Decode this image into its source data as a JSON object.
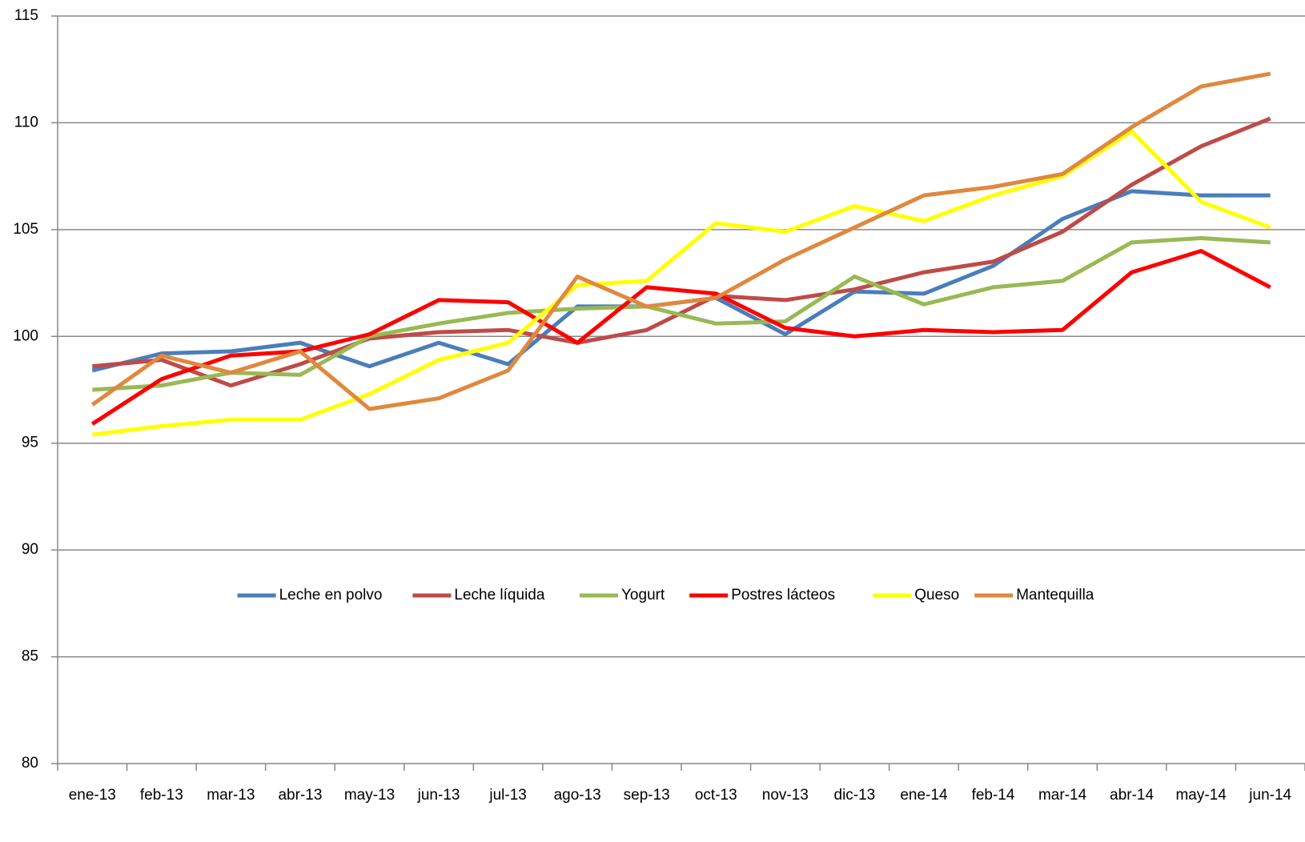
{
  "chart_data": {
    "type": "line",
    "categories": [
      "ene-13",
      "feb-13",
      "mar-13",
      "abr-13",
      "may-13",
      "jun-13",
      "jul-13",
      "ago-13",
      "sep-13",
      "oct-13",
      "nov-13",
      "dic-13",
      "ene-14",
      "feb-14",
      "mar-14",
      "abr-14",
      "may-14",
      "jun-14"
    ],
    "series": [
      {
        "name": "Leche en polvo",
        "color": "#4a7ebb",
        "values": [
          98.4,
          99.2,
          99.3,
          99.7,
          98.6,
          99.7,
          98.7,
          101.4,
          101.4,
          101.8,
          100.1,
          102.1,
          102.0,
          103.3,
          105.5,
          106.8,
          106.6,
          106.6
        ]
      },
      {
        "name": "Leche líquida",
        "color": "#be4b48",
        "values": [
          98.6,
          98.9,
          97.7,
          98.7,
          99.9,
          100.2,
          100.3,
          99.7,
          100.3,
          101.9,
          101.7,
          102.2,
          103.0,
          103.5,
          104.9,
          107.1,
          108.9,
          110.2
        ]
      },
      {
        "name": "Yogurt",
        "color": "#98b954",
        "values": [
          97.5,
          97.7,
          98.3,
          98.2,
          100.0,
          100.6,
          101.1,
          101.3,
          101.4,
          100.6,
          100.7,
          102.8,
          101.5,
          102.3,
          102.6,
          104.4,
          104.6,
          104.4
        ]
      },
      {
        "name": "Postres lácteos",
        "color": "#ff0000",
        "values": [
          95.9,
          98.0,
          99.1,
          99.3,
          100.1,
          101.7,
          101.6,
          99.7,
          102.3,
          102.0,
          100.4,
          100.0,
          100.3,
          100.2,
          100.3,
          103.0,
          104.0,
          102.3
        ]
      },
      {
        "name": "Queso",
        "color": "#ffff00",
        "values": [
          95.4,
          95.8,
          96.1,
          96.1,
          97.3,
          98.9,
          99.7,
          102.4,
          102.6,
          105.3,
          104.9,
          106.1,
          105.4,
          106.6,
          107.5,
          109.6,
          106.3,
          105.1
        ]
      },
      {
        "name": "Mantequilla",
        "color": "#e0883e",
        "values": [
          96.8,
          99.1,
          98.3,
          99.3,
          96.6,
          97.1,
          98.4,
          102.8,
          101.4,
          101.8,
          103.6,
          105.1,
          106.6,
          107.0,
          107.6,
          109.8,
          111.7,
          112.3
        ]
      }
    ],
    "ylim": [
      80,
      115
    ],
    "yticks": [
      80,
      85,
      90,
      95,
      100,
      105,
      110,
      115
    ],
    "grid": true,
    "legend": "center"
  }
}
